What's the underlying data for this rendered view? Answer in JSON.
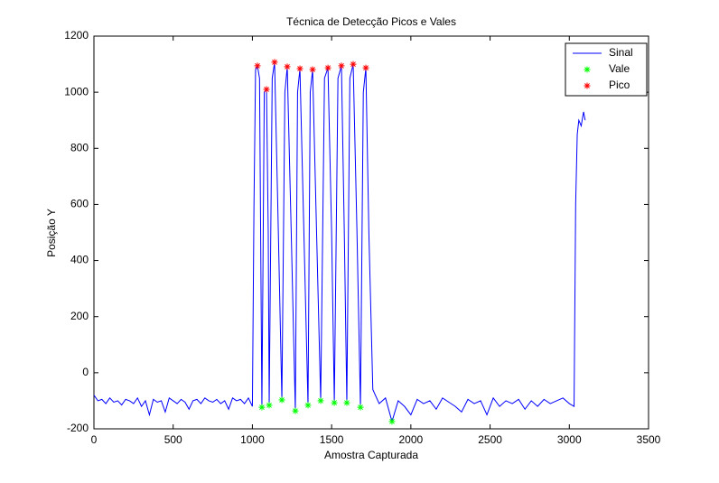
{
  "chart_data": {
    "type": "line",
    "title": "Técnica de Detecção Picos e Vales",
    "x_label": "Amostra Capturada",
    "y_label": "Posição Y",
    "xlim": [
      0,
      3500
    ],
    "ylim": [
      -200,
      1200
    ],
    "xticks": [
      0,
      500,
      1000,
      1500,
      2000,
      2500,
      3000,
      3500
    ],
    "yticks": [
      -200,
      0,
      200,
      400,
      600,
      800,
      1000,
      1200
    ],
    "legend_position": "upper-right",
    "series": [
      {
        "name": "Sinal",
        "mode": "line",
        "color": "#0000ff",
        "x": [
          0,
          25,
          50,
          75,
          100,
          125,
          150,
          175,
          200,
          225,
          250,
          275,
          300,
          325,
          350,
          375,
          400,
          425,
          450,
          475,
          500,
          525,
          550,
          575,
          600,
          625,
          650,
          675,
          700,
          725,
          750,
          775,
          800,
          825,
          850,
          875,
          900,
          925,
          950,
          975,
          1000,
          1010,
          1020,
          1032,
          1045,
          1060,
          1075,
          1089,
          1100,
          1106,
          1125,
          1140,
          1160,
          1186,
          1205,
          1220,
          1245,
          1271,
          1285,
          1300,
          1325,
          1351,
          1365,
          1380,
          1405,
          1431,
          1455,
          1477,
          1500,
          1517,
          1540,
          1562,
          1580,
          1596,
          1615,
          1636,
          1660,
          1682,
          1700,
          1716,
          1735,
          1760,
          1800,
          1840,
          1881,
          1920,
          1960,
          2000,
          2040,
          2080,
          2120,
          2160,
          2200,
          2240,
          2280,
          2320,
          2360,
          2400,
          2440,
          2480,
          2520,
          2560,
          2600,
          2640,
          2680,
          2720,
          2760,
          2800,
          2840,
          2880,
          2920,
          2960,
          3000,
          3030,
          3040,
          3050,
          3060,
          3075,
          3090,
          3100
        ],
        "values": [
          -80,
          -100,
          -95,
          -110,
          -90,
          -105,
          -100,
          -115,
          -95,
          -100,
          -110,
          -90,
          -120,
          -100,
          -150,
          -95,
          -105,
          -100,
          -140,
          -90,
          -100,
          -110,
          -95,
          -105,
          -130,
          -100,
          -95,
          -110,
          -90,
          -100,
          -105,
          -95,
          -110,
          -100,
          -130,
          -90,
          -100,
          -95,
          -110,
          -90,
          -120,
          600,
          1080,
          1094,
          1050,
          -123,
          1000,
          1010,
          500,
          -116,
          1050,
          1107,
          600,
          -97,
          1000,
          1091,
          500,
          -136,
          1000,
          1084,
          500,
          -116,
          1000,
          1081,
          500,
          -100,
          1050,
          1087,
          500,
          -107,
          1050,
          1094,
          500,
          -107,
          1050,
          1100,
          500,
          -123,
          1000,
          1087,
          500,
          -60,
          -110,
          -90,
          -174,
          -100,
          -120,
          -150,
          -95,
          -110,
          -100,
          -130,
          -90,
          -105,
          -120,
          -140,
          -95,
          -110,
          -100,
          -150,
          -90,
          -120,
          -100,
          -110,
          -95,
          -130,
          -100,
          -120,
          -95,
          -110,
          -100,
          -90,
          -110,
          -120,
          600,
          850,
          900,
          880,
          930,
          900
        ]
      },
      {
        "name": "Vale",
        "mode": "markers",
        "color": "#00ff00",
        "x": [
          1060,
          1106,
          1186,
          1271,
          1351,
          1431,
          1517,
          1596,
          1682,
          1881
        ],
        "values": [
          -123,
          -116,
          -97,
          -136,
          -116,
          -100,
          -107,
          -107,
          -123,
          -174
        ]
      },
      {
        "name": "Pico",
        "mode": "markers",
        "color": "#ff0000",
        "x": [
          1032,
          1089,
          1140,
          1220,
          1300,
          1380,
          1477,
          1562,
          1636,
          1716
        ],
        "values": [
          1094,
          1010,
          1107,
          1091,
          1084,
          1081,
          1087,
          1094,
          1100,
          1087
        ]
      }
    ]
  }
}
